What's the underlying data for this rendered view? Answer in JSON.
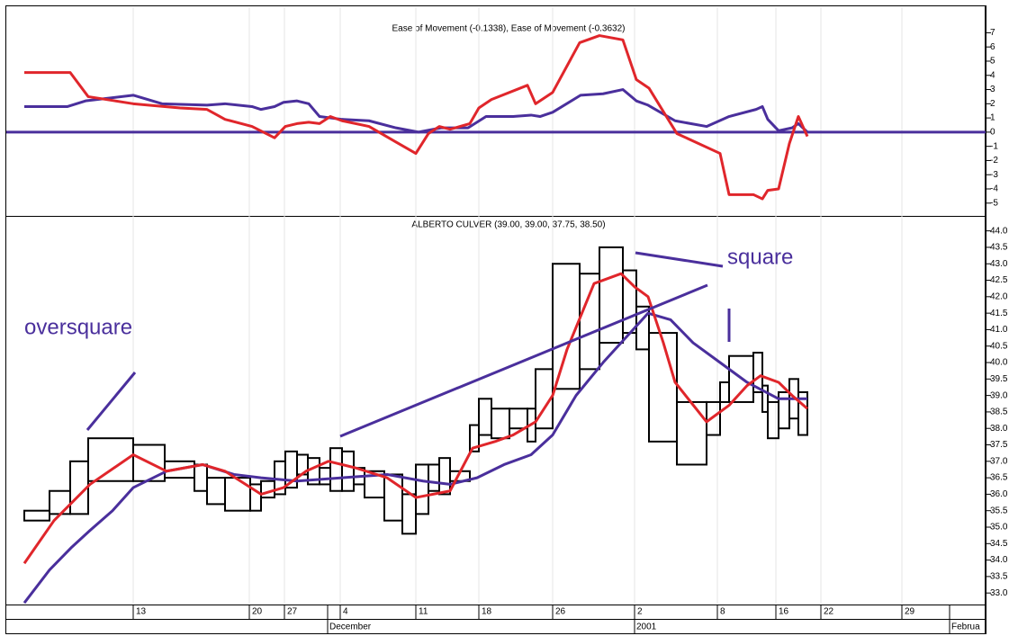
{
  "chart_data": [
    {
      "type": "line",
      "title": "Ease of Movement (-0.1338), Ease of Movement (-0.3632)",
      "xlim": [
        27,
        1092
      ],
      "ylim": [
        -5.9,
        8.8
      ],
      "yticks": [
        7,
        6,
        5,
        4,
        3,
        2,
        1,
        0,
        -1,
        -2,
        -3,
        -4,
        -5
      ],
      "reference_line": 0,
      "series": [
        {
          "color": "#4a2f9c",
          "x": [
            27,
            75,
            95,
            148,
            180,
            230,
            250,
            280,
            290,
            305,
            315,
            330,
            343,
            355,
            380,
            410,
            440,
            465,
            490,
            520,
            540,
            570,
            590,
            600,
            614,
            645,
            670,
            692,
            707,
            720,
            750,
            785,
            810,
            840,
            847,
            853,
            865,
            880,
            887,
            897
          ],
          "values": [
            1.8,
            1.8,
            2.2,
            2.6,
            2.0,
            1.9,
            2.0,
            1.8,
            1.6,
            1.8,
            2.1,
            2.2,
            2.0,
            1.1,
            0.9,
            0.8,
            0.3,
            0,
            0.3,
            0.3,
            1.1,
            1.1,
            1.2,
            1.1,
            1.4,
            2.6,
            2.7,
            3.0,
            2.2,
            1.9,
            0.8,
            0.4,
            1.1,
            1.6,
            1.8,
            0.9,
            0.1,
            0.3,
            0.6,
            0
          ]
        },
        {
          "color": "#e0262b",
          "x": [
            27,
            78,
            98,
            148,
            200,
            230,
            250,
            280,
            305,
            317,
            330,
            343,
            355,
            367,
            380,
            410,
            440,
            462,
            476,
            488,
            500,
            522,
            532,
            546,
            586,
            595,
            614,
            644,
            666,
            692,
            707,
            721,
            752,
            800,
            810,
            837,
            847,
            853,
            865,
            877,
            887,
            897
          ],
          "values": [
            4.2,
            4.2,
            2.5,
            2.0,
            1.7,
            1.6,
            0.9,
            0.4,
            -0.4,
            0.4,
            0.6,
            0.7,
            0.6,
            1.1,
            0.8,
            0.4,
            -0.7,
            -1.5,
            -0.1,
            0.4,
            0.2,
            0.6,
            1.7,
            2.3,
            3.3,
            2.0,
            2.8,
            6.3,
            6.8,
            6.5,
            3.7,
            3.1,
            -0.1,
            -1.5,
            -4.4,
            -4.4,
            -4.7,
            -4.1,
            -4.0,
            -0.8,
            1.1,
            -0.3
          ]
        }
      ]
    },
    {
      "type": "equivolume",
      "title": "ALBERTO CULVER (39.00, 39.00, 37.75, 38.50)",
      "xlim": [
        27,
        1092
      ],
      "ylim": [
        32.65,
        44.4
      ],
      "yticks": [
        {
          "value": 44,
          "label": "44.0"
        },
        {
          "value": 43.5,
          "label": "43.5"
        },
        {
          "value": 43,
          "label": "43.0"
        },
        {
          "value": 42.5,
          "label": "42.5"
        },
        {
          "value": 42,
          "label": "42.0"
        },
        {
          "value": 41.5,
          "label": "41.5"
        },
        {
          "value": 41,
          "label": "41.0"
        },
        {
          "value": 40.5,
          "label": "40.5"
        },
        {
          "value": 40,
          "label": "40.0"
        },
        {
          "value": 39.5,
          "label": "39.5"
        },
        {
          "value": 39,
          "label": "39.0"
        },
        {
          "value": 38.5,
          "label": "38.5"
        },
        {
          "value": 38,
          "label": "38.0"
        },
        {
          "value": 37.5,
          "label": "37.5"
        },
        {
          "value": 37,
          "label": "37.0"
        },
        {
          "value": 36.5,
          "label": "36.5"
        },
        {
          "value": 36,
          "label": "36.0"
        },
        {
          "value": 35.5,
          "label": "35.5"
        },
        {
          "value": 35,
          "label": "35.0"
        },
        {
          "value": 34.5,
          "label": "34.5"
        },
        {
          "value": 34,
          "label": "34.0"
        },
        {
          "value": 33.5,
          "label": "33.5"
        },
        {
          "value": 33,
          "label": "33.0"
        }
      ],
      "xticks": [
        {
          "value": 148,
          "label": "13"
        },
        {
          "value": 277,
          "label": "20"
        },
        {
          "value": 316,
          "label": "27"
        },
        {
          "value": 378,
          "label": "4"
        },
        {
          "value": 462,
          "label": "11"
        },
        {
          "value": 532,
          "label": "18"
        },
        {
          "value": 614,
          "label": "26"
        },
        {
          "value": 705,
          "label": "2"
        },
        {
          "value": 797,
          "label": "8"
        },
        {
          "value": 862,
          "label": "16"
        },
        {
          "value": 912,
          "label": "22"
        },
        {
          "value": 1002,
          "label": "29"
        }
      ],
      "month_ticks": [
        {
          "value": 364,
          "label": "December"
        },
        {
          "value": 705,
          "label": "2001"
        },
        {
          "value": 1055,
          "label": "Februa"
        }
      ],
      "annotations": [
        "oversquare",
        "square"
      ],
      "boxes": [
        {
          "x0": 27,
          "x1": 55,
          "high": 35.5,
          "low": 35.2
        },
        {
          "x0": 55,
          "x1": 78,
          "high": 36.1,
          "low": 35.4
        },
        {
          "x0": 78,
          "x1": 98,
          "high": 37.0,
          "low": 35.4
        },
        {
          "x0": 98,
          "x1": 148,
          "high": 37.7,
          "low": 36.4
        },
        {
          "x0": 148,
          "x1": 183,
          "high": 37.5,
          "low": 36.4
        },
        {
          "x0": 183,
          "x1": 216,
          "high": 37.0,
          "low": 36.5
        },
        {
          "x0": 216,
          "x1": 230,
          "high": 36.9,
          "low": 36.1
        },
        {
          "x0": 230,
          "x1": 250,
          "high": 36.5,
          "low": 35.7
        },
        {
          "x0": 250,
          "x1": 278,
          "high": 36.5,
          "low": 35.5
        },
        {
          "x0": 278,
          "x1": 290,
          "high": 36.3,
          "low": 35.5
        },
        {
          "x0": 290,
          "x1": 305,
          "high": 36.4,
          "low": 35.9
        },
        {
          "x0": 305,
          "x1": 317,
          "high": 37.0,
          "low": 36.0
        },
        {
          "x0": 317,
          "x1": 330,
          "high": 37.3,
          "low": 36.2
        },
        {
          "x0": 330,
          "x1": 342,
          "high": 37.2,
          "low": 36.6
        },
        {
          "x0": 342,
          "x1": 355,
          "high": 37.1,
          "low": 36.3
        },
        {
          "x0": 355,
          "x1": 367,
          "high": 36.8,
          "low": 36.3
        },
        {
          "x0": 367,
          "x1": 380,
          "high": 37.4,
          "low": 36.1
        },
        {
          "x0": 380,
          "x1": 393,
          "high": 37.3,
          "low": 36.1
        },
        {
          "x0": 393,
          "x1": 405,
          "high": 36.8,
          "low": 36.3
        },
        {
          "x0": 405,
          "x1": 427,
          "high": 36.7,
          "low": 35.9
        },
        {
          "x0": 427,
          "x1": 447,
          "high": 36.6,
          "low": 35.2
        },
        {
          "x0": 447,
          "x1": 462,
          "high": 36.0,
          "low": 34.8
        },
        {
          "x0": 462,
          "x1": 476,
          "high": 36.9,
          "low": 35.4
        },
        {
          "x0": 476,
          "x1": 488,
          "high": 36.9,
          "low": 36.1
        },
        {
          "x0": 488,
          "x1": 500,
          "high": 37.1,
          "low": 36.0
        },
        {
          "x0": 500,
          "x1": 522,
          "high": 36.7,
          "low": 36.4
        },
        {
          "x0": 522,
          "x1": 532,
          "high": 38.1,
          "low": 37.3
        },
        {
          "x0": 532,
          "x1": 546,
          "high": 38.9,
          "low": 37.8
        },
        {
          "x0": 546,
          "x1": 566,
          "high": 38.6,
          "low": 37.7
        },
        {
          "x0": 566,
          "x1": 586,
          "high": 38.6,
          "low": 38.0
        },
        {
          "x0": 586,
          "x1": 595,
          "high": 38.6,
          "low": 37.6
        },
        {
          "x0": 595,
          "x1": 614,
          "high": 39.8,
          "low": 38.0
        },
        {
          "x0": 614,
          "x1": 644,
          "high": 43.0,
          "low": 39.2
        },
        {
          "x0": 644,
          "x1": 666,
          "high": 42.7,
          "low": 39.8
        },
        {
          "x0": 666,
          "x1": 692,
          "high": 43.5,
          "low": 40.6
        },
        {
          "x0": 692,
          "x1": 707,
          "high": 42.8,
          "low": 40.9
        },
        {
          "x0": 707,
          "x1": 721,
          "high": 41.7,
          "low": 40.4
        },
        {
          "x0": 721,
          "x1": 752,
          "high": 40.9,
          "low": 37.6
        },
        {
          "x0": 752,
          "x1": 785,
          "high": 38.8,
          "low": 36.9
        },
        {
          "x0": 785,
          "x1": 800,
          "high": 38.8,
          "low": 37.8
        },
        {
          "x0": 800,
          "x1": 810,
          "high": 39.4,
          "low": 38.8
        },
        {
          "x0": 810,
          "x1": 837,
          "high": 40.2,
          "low": 38.8
        },
        {
          "x0": 837,
          "x1": 847,
          "high": 40.3,
          "low": 39.1
        },
        {
          "x0": 847,
          "x1": 853,
          "high": 39.3,
          "low": 38.5
        },
        {
          "x0": 853,
          "x1": 865,
          "high": 38.8,
          "low": 37.7
        },
        {
          "x0": 865,
          "x1": 877,
          "high": 39.1,
          "low": 38.0
        },
        {
          "x0": 877,
          "x1": 887,
          "high": 39.5,
          "low": 38.3
        },
        {
          "x0": 887,
          "x1": 897,
          "high": 39.1,
          "low": 37.8
        }
      ],
      "series": [
        {
          "color": "#4a2f9c",
          "x": [
            27,
            55,
            80,
            100,
            125,
            148,
            185,
            225,
            260,
            290,
            330,
            380,
            430,
            470,
            500,
            530,
            560,
            590,
            614,
            640,
            670,
            700,
            720,
            745,
            770,
            800,
            830,
            865,
            897
          ],
          "values": [
            32.7,
            33.7,
            34.4,
            34.9,
            35.5,
            36.2,
            36.7,
            36.9,
            36.6,
            36.5,
            36.4,
            36.5,
            36.6,
            36.4,
            36.3,
            36.5,
            36.9,
            37.2,
            37.8,
            39.0,
            40.0,
            40.9,
            41.5,
            41.3,
            40.6,
            40.0,
            39.4,
            38.9,
            38.9
          ]
        },
        {
          "color": "#e0262b",
          "x": [
            27,
            60,
            100,
            148,
            185,
            225,
            250,
            290,
            315,
            340,
            365,
            395,
            430,
            462,
            500,
            525,
            550,
            570,
            595,
            614,
            630,
            645,
            660,
            690,
            705,
            720,
            737,
            750,
            785,
            810,
            830,
            845,
            865,
            880,
            897
          ],
          "values": [
            33.9,
            35.2,
            36.3,
            37.2,
            36.7,
            36.9,
            36.7,
            36.0,
            36.2,
            36.7,
            37.0,
            36.8,
            36.5,
            35.9,
            36.1,
            37.4,
            37.6,
            37.8,
            38.2,
            39.0,
            40.4,
            41.4,
            42.4,
            42.7,
            42.3,
            42.0,
            40.6,
            39.4,
            38.2,
            38.7,
            39.3,
            39.6,
            39.4,
            39.0,
            38.6
          ]
        }
      ]
    }
  ]
}
